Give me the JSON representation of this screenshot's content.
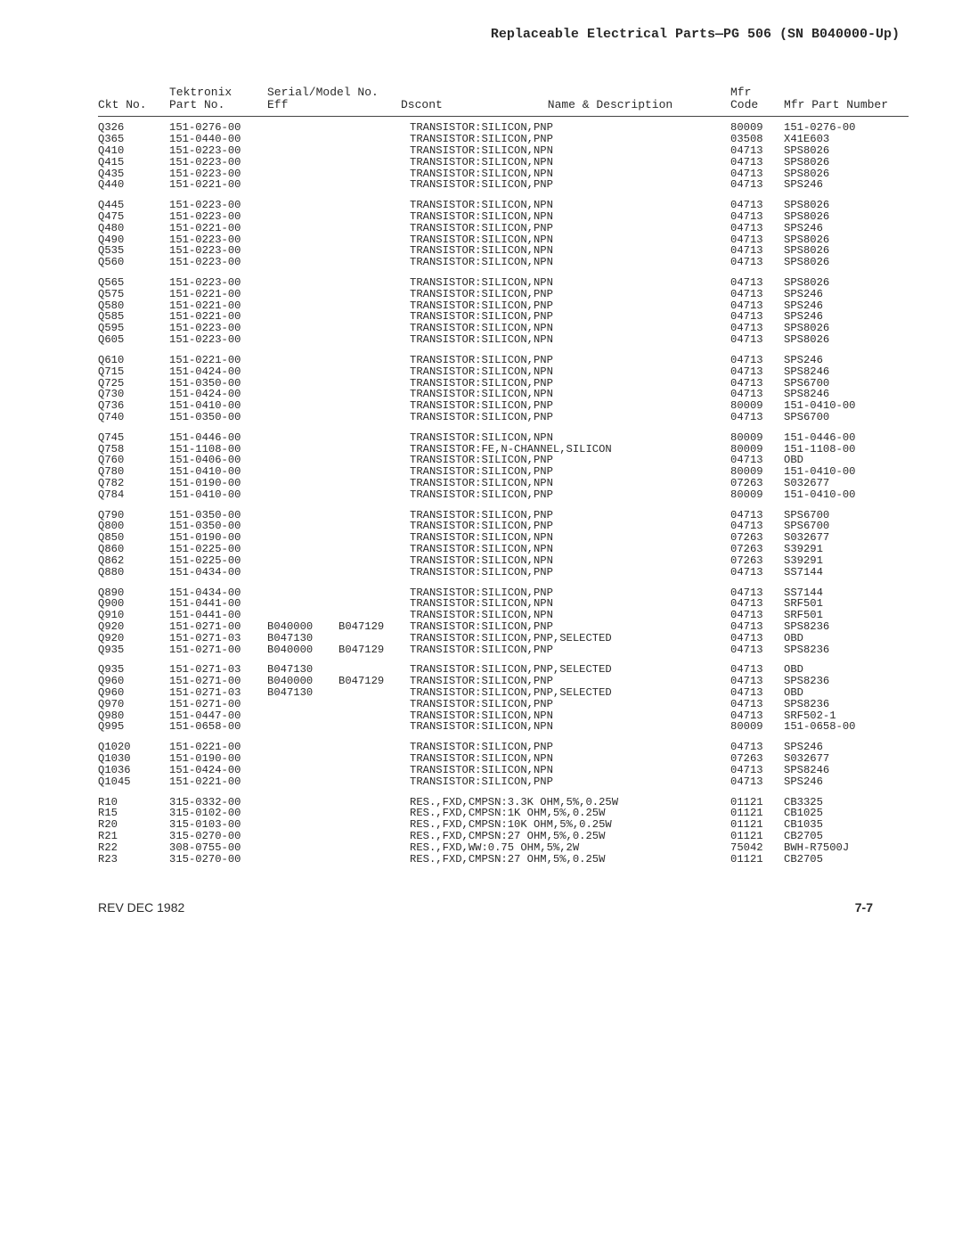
{
  "meta": {
    "title": "Replaceable Electrical Parts—PG 506 (SN B040000-Up)",
    "footer_left": "REV DEC 1982",
    "footer_right": "7-7"
  },
  "headers": {
    "ckt": "Ckt No.",
    "tek1": "Tektronix",
    "tek2": "Part No.",
    "ser1": "Serial/Model No.",
    "ser2a": "Eff",
    "ser2b": "Dscont",
    "name": "Name & Description",
    "mfr1": "Mfr",
    "mfr2": "Code",
    "mpn": "Mfr Part Number"
  },
  "groups": [
    [
      {
        "ckt": "Q326",
        "part": "151-0276-00",
        "eff": "",
        "dsc": "",
        "desc": "TRANSISTOR:SILICON,PNP",
        "mfr": "80009",
        "mpn": "151-0276-00"
      },
      {
        "ckt": "Q365",
        "part": "151-0440-00",
        "eff": "",
        "dsc": "",
        "desc": "TRANSISTOR:SILICON,PNP",
        "mfr": "03508",
        "mpn": "X41E603"
      },
      {
        "ckt": "Q410",
        "part": "151-0223-00",
        "eff": "",
        "dsc": "",
        "desc": "TRANSISTOR:SILICON,NPN",
        "mfr": "04713",
        "mpn": "SPS8026"
      },
      {
        "ckt": "Q415",
        "part": "151-0223-00",
        "eff": "",
        "dsc": "",
        "desc": "TRANSISTOR:SILICON,NPN",
        "mfr": "04713",
        "mpn": "SPS8026"
      },
      {
        "ckt": "Q435",
        "part": "151-0223-00",
        "eff": "",
        "dsc": "",
        "desc": "TRANSISTOR:SILICON,NPN",
        "mfr": "04713",
        "mpn": "SPS8026"
      },
      {
        "ckt": "Q440",
        "part": "151-0221-00",
        "eff": "",
        "dsc": "",
        "desc": "TRANSISTOR:SILICON,PNP",
        "mfr": "04713",
        "mpn": "SPS246"
      }
    ],
    [
      {
        "ckt": "Q445",
        "part": "151-0223-00",
        "eff": "",
        "dsc": "",
        "desc": "TRANSISTOR:SILICON,NPN",
        "mfr": "04713",
        "mpn": "SPS8026"
      },
      {
        "ckt": "Q475",
        "part": "151-0223-00",
        "eff": "",
        "dsc": "",
        "desc": "TRANSISTOR:SILICON,NPN",
        "mfr": "04713",
        "mpn": "SPS8026"
      },
      {
        "ckt": "Q480",
        "part": "151-0221-00",
        "eff": "",
        "dsc": "",
        "desc": "TRANSISTOR:SILICON,PNP",
        "mfr": "04713",
        "mpn": "SPS246"
      },
      {
        "ckt": "Q490",
        "part": "151-0223-00",
        "eff": "",
        "dsc": "",
        "desc": "TRANSISTOR:SILICON,NPN",
        "mfr": "04713",
        "mpn": "SPS8026"
      },
      {
        "ckt": "Q535",
        "part": "151-0223-00",
        "eff": "",
        "dsc": "",
        "desc": "TRANSISTOR:SILICON,NPN",
        "mfr": "04713",
        "mpn": "SPS8026"
      },
      {
        "ckt": "Q560",
        "part": "151-0223-00",
        "eff": "",
        "dsc": "",
        "desc": "TRANSISTOR:SILICON,NPN",
        "mfr": "04713",
        "mpn": "SPS8026"
      }
    ],
    [
      {
        "ckt": "Q565",
        "part": "151-0223-00",
        "eff": "",
        "dsc": "",
        "desc": "TRANSISTOR:SILICON,NPN",
        "mfr": "04713",
        "mpn": "SPS8026"
      },
      {
        "ckt": "Q575",
        "part": "151-0221-00",
        "eff": "",
        "dsc": "",
        "desc": "TRANSISTOR:SILICON,PNP",
        "mfr": "04713",
        "mpn": "SPS246"
      },
      {
        "ckt": "Q580",
        "part": "151-0221-00",
        "eff": "",
        "dsc": "",
        "desc": "TRANSISTOR:SILICON,PNP",
        "mfr": "04713",
        "mpn": "SPS246"
      },
      {
        "ckt": "Q585",
        "part": "151-0221-00",
        "eff": "",
        "dsc": "",
        "desc": "TRANSISTOR:SILICON,PNP",
        "mfr": "04713",
        "mpn": "SPS246"
      },
      {
        "ckt": "Q595",
        "part": "151-0223-00",
        "eff": "",
        "dsc": "",
        "desc": "TRANSISTOR:SILICON,NPN",
        "mfr": "04713",
        "mpn": "SPS8026"
      },
      {
        "ckt": "Q605",
        "part": "151-0223-00",
        "eff": "",
        "dsc": "",
        "desc": "TRANSISTOR:SILICON,NPN",
        "mfr": "04713",
        "mpn": "SPS8026"
      }
    ],
    [
      {
        "ckt": "Q610",
        "part": "151-0221-00",
        "eff": "",
        "dsc": "",
        "desc": "TRANSISTOR:SILICON,PNP",
        "mfr": "04713",
        "mpn": "SPS246"
      },
      {
        "ckt": "Q715",
        "part": "151-0424-00",
        "eff": "",
        "dsc": "",
        "desc": "TRANSISTOR:SILICON,NPN",
        "mfr": "04713",
        "mpn": "SPS8246"
      },
      {
        "ckt": "Q725",
        "part": "151-0350-00",
        "eff": "",
        "dsc": "",
        "desc": "TRANSISTOR:SILICON,PNP",
        "mfr": "04713",
        "mpn": "SPS6700"
      },
      {
        "ckt": "Q730",
        "part": "151-0424-00",
        "eff": "",
        "dsc": "",
        "desc": "TRANSISTOR:SILICON,NPN",
        "mfr": "04713",
        "mpn": "SPS8246"
      },
      {
        "ckt": "Q736",
        "part": "151-0410-00",
        "eff": "",
        "dsc": "",
        "desc": "TRANSISTOR:SILICON,PNP",
        "mfr": "80009",
        "mpn": "151-0410-00"
      },
      {
        "ckt": "Q740",
        "part": "151-0350-00",
        "eff": "",
        "dsc": "",
        "desc": "TRANSISTOR:SILICON,PNP",
        "mfr": "04713",
        "mpn": "SPS6700"
      }
    ],
    [
      {
        "ckt": "Q745",
        "part": "151-0446-00",
        "eff": "",
        "dsc": "",
        "desc": "TRANSISTOR:SILICON,NPN",
        "mfr": "80009",
        "mpn": "151-0446-00"
      },
      {
        "ckt": "Q758",
        "part": "151-1108-00",
        "eff": "",
        "dsc": "",
        "desc": "TRANSISTOR:FE,N-CHANNEL,SILICON",
        "mfr": "80009",
        "mpn": "151-1108-00"
      },
      {
        "ckt": "Q760",
        "part": "151-0406-00",
        "eff": "",
        "dsc": "",
        "desc": "TRANSISTOR:SILICON,PNP",
        "mfr": "04713",
        "mpn": "OBD"
      },
      {
        "ckt": "Q780",
        "part": "151-0410-00",
        "eff": "",
        "dsc": "",
        "desc": "TRANSISTOR:SILICON,PNP",
        "mfr": "80009",
        "mpn": "151-0410-00"
      },
      {
        "ckt": "Q782",
        "part": "151-0190-00",
        "eff": "",
        "dsc": "",
        "desc": "TRANSISTOR:SILICON,NPN",
        "mfr": "07263",
        "mpn": "S032677"
      },
      {
        "ckt": "Q784",
        "part": "151-0410-00",
        "eff": "",
        "dsc": "",
        "desc": "TRANSISTOR:SILICON,PNP",
        "mfr": "80009",
        "mpn": "151-0410-00"
      }
    ],
    [
      {
        "ckt": "Q790",
        "part": "151-0350-00",
        "eff": "",
        "dsc": "",
        "desc": "TRANSISTOR:SILICON,PNP",
        "mfr": "04713",
        "mpn": "SPS6700"
      },
      {
        "ckt": "Q800",
        "part": "151-0350-00",
        "eff": "",
        "dsc": "",
        "desc": "TRANSISTOR:SILICON,PNP",
        "mfr": "04713",
        "mpn": "SPS6700"
      },
      {
        "ckt": "Q850",
        "part": "151-0190-00",
        "eff": "",
        "dsc": "",
        "desc": "TRANSISTOR:SILICON,NPN",
        "mfr": "07263",
        "mpn": "S032677"
      },
      {
        "ckt": "Q860",
        "part": "151-0225-00",
        "eff": "",
        "dsc": "",
        "desc": "TRANSISTOR:SILICON,NPN",
        "mfr": "07263",
        "mpn": "S39291"
      },
      {
        "ckt": "Q862",
        "part": "151-0225-00",
        "eff": "",
        "dsc": "",
        "desc": "TRANSISTOR:SILICON,NPN",
        "mfr": "07263",
        "mpn": "S39291"
      },
      {
        "ckt": "Q880",
        "part": "151-0434-00",
        "eff": "",
        "dsc": "",
        "desc": "TRANSISTOR:SILICON,PNP",
        "mfr": "04713",
        "mpn": "SS7144"
      }
    ],
    [
      {
        "ckt": "Q890",
        "part": "151-0434-00",
        "eff": "",
        "dsc": "",
        "desc": "TRANSISTOR:SILICON,PNP",
        "mfr": "04713",
        "mpn": "SS7144"
      },
      {
        "ckt": "Q900",
        "part": "151-0441-00",
        "eff": "",
        "dsc": "",
        "desc": "TRANSISTOR:SILICON,NPN",
        "mfr": "04713",
        "mpn": "SRF501"
      },
      {
        "ckt": "Q910",
        "part": "151-0441-00",
        "eff": "",
        "dsc": "",
        "desc": "TRANSISTOR:SILICON,NPN",
        "mfr": "04713",
        "mpn": "SRF501"
      },
      {
        "ckt": "Q920",
        "part": "151-0271-00",
        "eff": "B040000",
        "dsc": "B047129",
        "desc": "TRANSISTOR:SILICON,PNP",
        "mfr": "04713",
        "mpn": "SPS8236"
      },
      {
        "ckt": "Q920",
        "part": "151-0271-03",
        "eff": "B047130",
        "dsc": "",
        "desc": "TRANSISTOR:SILICON,PNP,SELECTED",
        "mfr": "04713",
        "mpn": "OBD"
      },
      {
        "ckt": "Q935",
        "part": "151-0271-00",
        "eff": "B040000",
        "dsc": "B047129",
        "desc": "TRANSISTOR:SILICON,PNP",
        "mfr": "04713",
        "mpn": "SPS8236"
      }
    ],
    [
      {
        "ckt": "Q935",
        "part": "151-0271-03",
        "eff": "B047130",
        "dsc": "",
        "desc": "TRANSISTOR:SILICON,PNP,SELECTED",
        "mfr": "04713",
        "mpn": "OBD"
      },
      {
        "ckt": "Q960",
        "part": "151-0271-00",
        "eff": "B040000",
        "dsc": "B047129",
        "desc": "TRANSISTOR:SILICON,PNP",
        "mfr": "04713",
        "mpn": "SPS8236"
      },
      {
        "ckt": "Q960",
        "part": "151-0271-03",
        "eff": "B047130",
        "dsc": "",
        "desc": "TRANSISTOR:SILICON,PNP,SELECTED",
        "mfr": "04713",
        "mpn": "OBD"
      },
      {
        "ckt": "Q970",
        "part": "151-0271-00",
        "eff": "",
        "dsc": "",
        "desc": "TRANSISTOR:SILICON,PNP",
        "mfr": "04713",
        "mpn": "SPS8236"
      },
      {
        "ckt": "Q980",
        "part": "151-0447-00",
        "eff": "",
        "dsc": "",
        "desc": "TRANSISTOR:SILICON,NPN",
        "mfr": "04713",
        "mpn": "SRF502-1"
      },
      {
        "ckt": "Q995",
        "part": "151-0658-00",
        "eff": "",
        "dsc": "",
        "desc": "TRANSISTOR:SILICON,NPN",
        "mfr": "80009",
        "mpn": "151-0658-00"
      }
    ],
    [
      {
        "ckt": "Q1020",
        "part": "151-0221-00",
        "eff": "",
        "dsc": "",
        "desc": "TRANSISTOR:SILICON,PNP",
        "mfr": "04713",
        "mpn": "SPS246"
      },
      {
        "ckt": "Q1030",
        "part": "151-0190-00",
        "eff": "",
        "dsc": "",
        "desc": "TRANSISTOR:SILICON,NPN",
        "mfr": "07263",
        "mpn": "S032677"
      },
      {
        "ckt": "Q1036",
        "part": "151-0424-00",
        "eff": "",
        "dsc": "",
        "desc": "TRANSISTOR:SILICON,NPN",
        "mfr": "04713",
        "mpn": "SPS8246"
      },
      {
        "ckt": "Q1045",
        "part": "151-0221-00",
        "eff": "",
        "dsc": "",
        "desc": "TRANSISTOR:SILICON,PNP",
        "mfr": "04713",
        "mpn": "SPS246"
      }
    ],
    [
      {
        "ckt": "R10",
        "part": "315-0332-00",
        "eff": "",
        "dsc": "",
        "desc": "RES.,FXD,CMPSN:3.3K OHM,5%,0.25W",
        "mfr": "01121",
        "mpn": "CB3325"
      },
      {
        "ckt": "R15",
        "part": "315-0102-00",
        "eff": "",
        "dsc": "",
        "desc": "RES.,FXD,CMPSN:1K OHM,5%,0.25W",
        "mfr": "01121",
        "mpn": "CB1025"
      },
      {
        "ckt": "R20",
        "part": "315-0103-00",
        "eff": "",
        "dsc": "",
        "desc": "RES.,FXD,CMPSN:10K OHM,5%,0.25W",
        "mfr": "01121",
        "mpn": "CB1035"
      },
      {
        "ckt": "R21",
        "part": "315-0270-00",
        "eff": "",
        "dsc": "",
        "desc": "RES.,FXD,CMPSN:27 OHM,5%,0.25W",
        "mfr": "01121",
        "mpn": "CB2705"
      },
      {
        "ckt": "R22",
        "part": "308-0755-00",
        "eff": "",
        "dsc": "",
        "desc": "RES.,FXD,WW:0.75 OHM,5%,2W",
        "mfr": "75042",
        "mpn": "BWH-R7500J"
      },
      {
        "ckt": "R23",
        "part": "315-0270-00",
        "eff": "",
        "dsc": "",
        "desc": "RES.,FXD,CMPSN:27 OHM,5%,0.25W",
        "mfr": "01121",
        "mpn": "CB2705"
      }
    ]
  ]
}
